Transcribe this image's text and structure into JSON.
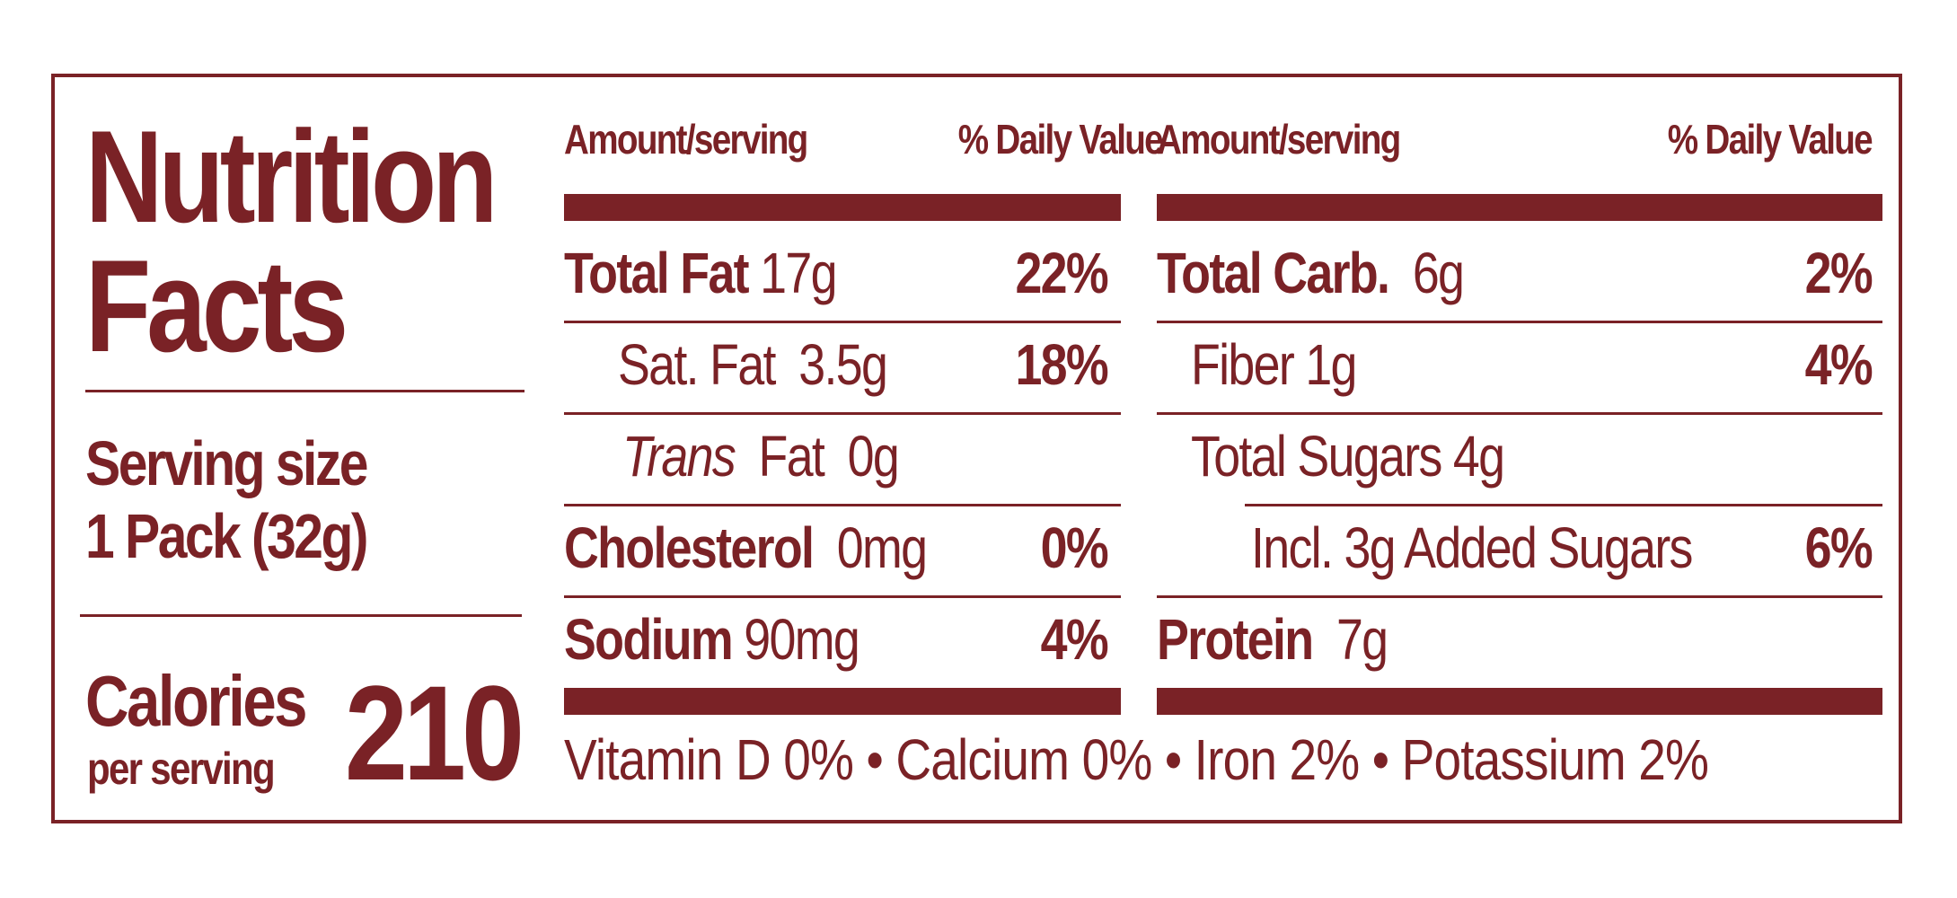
{
  "label": {
    "title_line1": "Nutrition",
    "title_line2": "Facts",
    "serving_label": "Serving size",
    "serving_value": "1 Pack (32g)",
    "calories_label": "Calories",
    "calories_sub": "per serving",
    "calories_value": "210"
  },
  "left_table": {
    "header_amount": "Amount/serving",
    "header_dv": "% Daily Value",
    "rows": [
      {
        "name": "Total Fat",
        "amount": "17g",
        "dv": "22%"
      },
      {
        "name": "Sat. Fat",
        "amount": "3.5g",
        "dv": "18%"
      },
      {
        "name": "Trans",
        "name_suffix": "Fat",
        "amount": "0g",
        "dv": ""
      },
      {
        "name": "Cholesterol",
        "amount": "0mg",
        "dv": "0%"
      },
      {
        "name": "Sodium",
        "amount": "90mg",
        "dv": "4%"
      }
    ]
  },
  "right_table": {
    "header_amount": "Amount/serving",
    "header_dv": "% Daily Value",
    "rows": [
      {
        "name": "Total Carb.",
        "amount": "6g",
        "dv": "2%"
      },
      {
        "name": "Fiber",
        "amount": "1g",
        "dv": "4%"
      },
      {
        "name": "Total Sugars",
        "amount": "4g",
        "dv": ""
      },
      {
        "name": "Incl. 3g Added Sugars",
        "amount": "",
        "dv": "6%"
      },
      {
        "name": "Protein",
        "amount": "7g",
        "dv": ""
      }
    ]
  },
  "footer": {
    "vitamins": "Vitamin D 0% • Calcium 0% • Iron 2% • Potassium 2%"
  },
  "colors": {
    "ink": "#7a2226",
    "background": "#ffffff"
  }
}
